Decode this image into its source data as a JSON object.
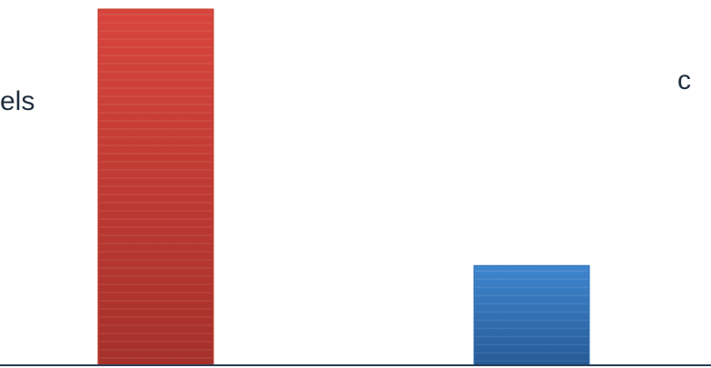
{
  "chart_data": {
    "type": "bar",
    "categories": [
      "",
      ""
    ],
    "values": [
      100,
      28
    ],
    "bar_colors": [
      "#c0392b",
      "#2e6db4"
    ],
    "bar_highlight_colors": [
      "#d8453c",
      "#3f86cf"
    ],
    "bar_shadow_colors": [
      "#a5302a",
      "#265a96"
    ],
    "axis_color": "#2b3d55",
    "grid": false,
    "ylim": [
      0,
      100
    ],
    "labels": {
      "left_fragment": "els",
      "right_fragment": "c"
    }
  }
}
